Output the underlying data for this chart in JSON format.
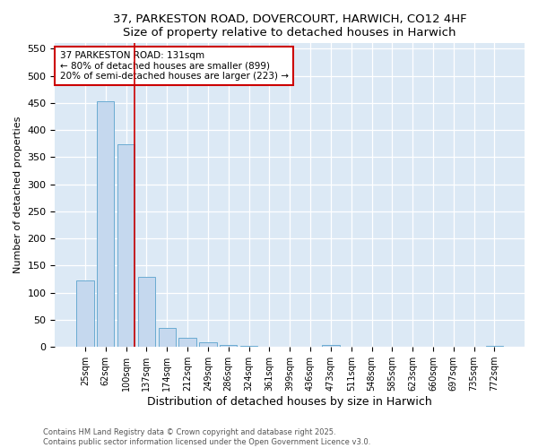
{
  "title": "37, PARKESTON ROAD, DOVERCOURT, HARWICH, CO12 4HF",
  "subtitle": "Size of property relative to detached houses in Harwich",
  "xlabel": "Distribution of detached houses by size in Harwich",
  "ylabel": "Number of detached properties",
  "categories": [
    "25sqm",
    "62sqm",
    "100sqm",
    "137sqm",
    "174sqm",
    "212sqm",
    "249sqm",
    "286sqm",
    "324sqm",
    "361sqm",
    "399sqm",
    "436sqm",
    "473sqm",
    "511sqm",
    "548sqm",
    "585sqm",
    "623sqm",
    "660sqm",
    "697sqm",
    "735sqm",
    "772sqm"
  ],
  "values": [
    122,
    453,
    374,
    130,
    35,
    17,
    8,
    4,
    2,
    0,
    0,
    0,
    3,
    0,
    0,
    0,
    0,
    0,
    0,
    0,
    2
  ],
  "bar_color": "#c5d8ee",
  "bar_edge_color": "#6aabd2",
  "vline_color": "#cc0000",
  "annotation_title": "37 PARKESTON ROAD: 131sqm",
  "annotation_line1": "← 80% of detached houses are smaller (899)",
  "annotation_line2": "20% of semi-detached houses are larger (223) →",
  "annotation_box_color": "#cc0000",
  "annotation_bg": "#ffffff",
  "ylim": [
    0,
    560
  ],
  "yticks": [
    0,
    50,
    100,
    150,
    200,
    250,
    300,
    350,
    400,
    450,
    500,
    550
  ],
  "footer_line1": "Contains HM Land Registry data © Crown copyright and database right 2025.",
  "footer_line2": "Contains public sector information licensed under the Open Government Licence v3.0.",
  "bg_color": "#ffffff",
  "plot_bg_color": "#dce9f5"
}
